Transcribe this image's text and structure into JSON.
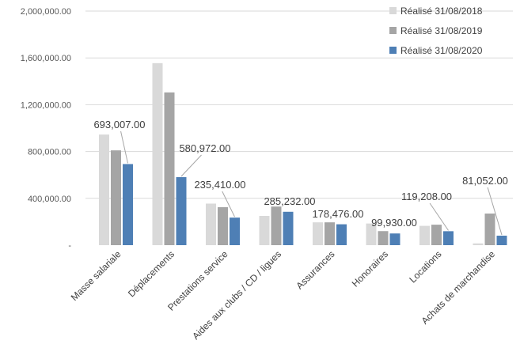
{
  "chart_data": {
    "type": "bar",
    "categories": [
      "Masse salariale",
      "Déplacements",
      "Prestations service",
      "Aides aux clubs / CD / ligues",
      "Assurances",
      "Honoraires",
      "Locations",
      "Achats de marchandise"
    ],
    "series": [
      {
        "name": "Réalisé 31/08/2018",
        "color": "#d9d9d9",
        "values": [
          945000,
          1555000,
          355000,
          250000,
          195000,
          185000,
          165000,
          15000
        ]
      },
      {
        "name": "Réalisé 31/08/2019",
        "color": "#a5a5a5",
        "values": [
          810000,
          1305000,
          325000,
          330000,
          195000,
          120000,
          175000,
          270000
        ]
      },
      {
        "name": "Réalisé 31/08/2020",
        "color": "#4e7fb5",
        "values": [
          693007,
          580972,
          235410,
          285232,
          178476,
          99930,
          119208,
          81052
        ]
      }
    ],
    "data_labels": {
      "series_index": 2,
      "labels": [
        "693,007.00",
        "580,972.00",
        "235,410.00",
        "285,232.00",
        "178,476.00",
        "99,930.00",
        "119,208.00",
        "81,052.00"
      ]
    },
    "y_ticks": [
      0,
      400000,
      800000,
      1200000,
      1600000,
      2000000
    ],
    "y_tick_labels": [
      "-",
      "400,000.00",
      "800,000.00",
      "1,200,000.00",
      "1,600,000.00",
      "2,000,000.00"
    ],
    "ylim": [
      0,
      2000000
    ],
    "grid": true,
    "legend_position": "top-right"
  }
}
